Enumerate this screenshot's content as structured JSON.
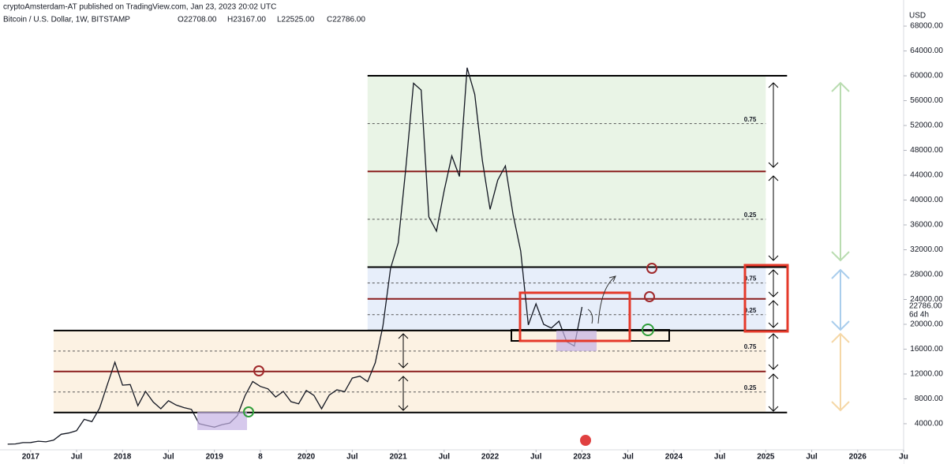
{
  "chart_data": {
    "type": "line",
    "subtitle": "cryptoAmsterdam-AT published on TradingView.com, Jan 23, 2023 20:02 UTC",
    "title": "Bitcoin / U.S. Dollar, 1W, BITSTAMP",
    "ohlc": [
      "O22708.00",
      "H23167.00",
      "L22525.00",
      "C22786.00"
    ],
    "y_label": "USD",
    "x": [
      "2016-10",
      "2016-11",
      "2016-12",
      "2017-01",
      "2017-02",
      "2017-03",
      "2017-04",
      "2017-05",
      "2017-06",
      "2017-07",
      "2017-08",
      "2017-09",
      "2017-10",
      "2017-11",
      "2017-12",
      "2018-01",
      "2018-02",
      "2018-03",
      "2018-04",
      "2018-05",
      "2018-06",
      "2018-07",
      "2018-08",
      "2018-09",
      "2018-10",
      "2018-11",
      "2018-12",
      "2019-01",
      "2019-02",
      "2019-03",
      "2019-04",
      "2019-05",
      "2019-06",
      "2019-07",
      "2019-08",
      "2019-09",
      "2019-10",
      "2019-11",
      "2019-12",
      "2020-01",
      "2020-02",
      "2020-03",
      "2020-04",
      "2020-05",
      "2020-06",
      "2020-07",
      "2020-08",
      "2020-09",
      "2020-10",
      "2020-11",
      "2020-12",
      "2021-01",
      "2021-02",
      "2021-03",
      "2021-04",
      "2021-05",
      "2021-06",
      "2021-07",
      "2021-08",
      "2021-09",
      "2021-10",
      "2021-11",
      "2021-12",
      "2022-01",
      "2022-02",
      "2022-03",
      "2022-04",
      "2022-05",
      "2022-06",
      "2022-07",
      "2022-08",
      "2022-09",
      "2022-10",
      "2022-11",
      "2022-12",
      "2023-01"
    ],
    "series": [
      {
        "name": "BTCUSD",
        "color": "#131722",
        "values": [
          700,
          740,
          960,
          970,
          1190,
          1080,
          1350,
          2300,
          2500,
          2870,
          4700,
          4340,
          6470,
          10200,
          13900,
          10200,
          10300,
          6900,
          9200,
          7500,
          6400,
          7700,
          7000,
          6600,
          6300,
          4000,
          3700,
          3450,
          3850,
          4100,
          5300,
          8500,
          10800,
          10000,
          9600,
          8300,
          9200,
          7550,
          7200,
          9350,
          8550,
          6400,
          8600,
          9450,
          9150,
          11350,
          11650,
          10780,
          13800,
          19700,
          29000,
          33100,
          45200,
          58800,
          57700,
          37300,
          35000,
          41500,
          47100,
          43800,
          61300,
          57000,
          46300,
          38500,
          43200,
          45500,
          37700,
          31800,
          19900,
          23300,
          20000,
          19400,
          20500,
          17200,
          16500,
          22786
        ]
      }
    ],
    "xlim": [
      "2016-09",
      "2026-07"
    ],
    "xticks": [
      {
        "value": "2017-01",
        "label": "2017"
      },
      {
        "value": "2017-07",
        "label": "Jul"
      },
      {
        "value": "2018-01",
        "label": "2018"
      },
      {
        "value": "2018-07",
        "label": "Jul"
      },
      {
        "value": "2019-01",
        "label": "2019"
      },
      {
        "value": "2019-07",
        "label": "8"
      },
      {
        "value": "2020-01",
        "label": "2020"
      },
      {
        "value": "2020-07",
        "label": "Jul"
      },
      {
        "value": "2021-01",
        "label": "2021"
      },
      {
        "value": "2021-07",
        "label": "Jul"
      },
      {
        "value": "2022-01",
        "label": "2022"
      },
      {
        "value": "2022-07",
        "label": "Jul"
      },
      {
        "value": "2023-01",
        "label": "2023"
      },
      {
        "value": "2023-07",
        "label": "Jul"
      },
      {
        "value": "2024-01",
        "label": "2024"
      },
      {
        "value": "2024-07",
        "label": "Jul"
      },
      {
        "value": "2025-01",
        "label": "2025"
      },
      {
        "value": "2025-07",
        "label": "Jul"
      },
      {
        "value": "2026-01",
        "label": "2026"
      },
      {
        "value": "2026-07",
        "label": "Ju"
      }
    ],
    "ylim": [
      -200,
      72200
    ],
    "yticks": [
      {
        "value": 4000,
        "label": "4000.00"
      },
      {
        "value": 8000,
        "label": "8000.00"
      },
      {
        "value": 12000,
        "label": "12000.00"
      },
      {
        "value": 16000,
        "label": "16000.00"
      },
      {
        "value": 20000,
        "label": "20000.00"
      },
      {
        "value": 24000,
        "label": "24000.00"
      },
      {
        "value": 28000,
        "label": "28000.00"
      },
      {
        "value": 32000,
        "label": "32000.00"
      },
      {
        "value": 36000,
        "label": "36000.00"
      },
      {
        "value": 40000,
        "label": "40000.00"
      },
      {
        "value": 44000,
        "label": "44000.00"
      },
      {
        "value": 48000,
        "label": "48000.00"
      },
      {
        "value": 52000,
        "label": "52000.00"
      },
      {
        "value": 56000,
        "label": "56000.00"
      },
      {
        "value": 60000,
        "label": "60000.00"
      },
      {
        "value": 64000,
        "label": "64000.00"
      },
      {
        "value": 68000,
        "label": "68000.00"
      }
    ],
    "grid": false,
    "last_price": {
      "value": 22786,
      "label": "22786.00"
    },
    "countdown": "6d 4h",
    "zones": [
      {
        "start": "2020-09",
        "end": "2025-01",
        "top": 60000,
        "bottom": 29200,
        "color": "#e9f4e6"
      },
      {
        "start": "2020-09",
        "end": "2025-01",
        "top": 29200,
        "bottom": 19000,
        "color": "#e7eefa"
      },
      {
        "start": "2017-04",
        "end": "2025-01",
        "top": 19000,
        "bottom": 5800,
        "color": "#fcf2e3"
      }
    ],
    "fib_levels": [
      {
        "value": 0.75,
        "label": "0.75"
      },
      {
        "value": 0.25,
        "label": "0.25"
      }
    ]
  }
}
